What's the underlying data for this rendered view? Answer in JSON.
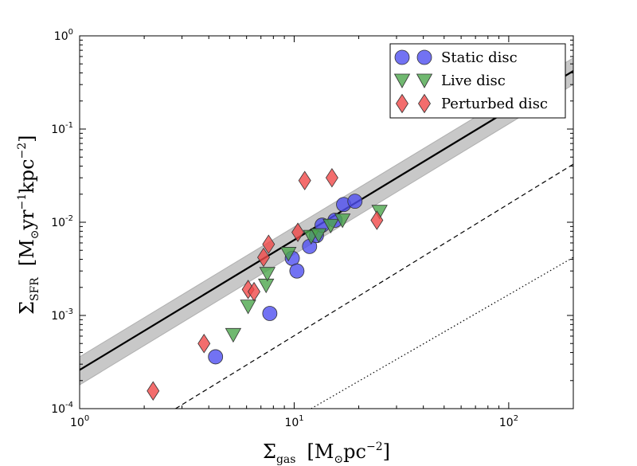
{
  "chart_data": {
    "type": "scatter",
    "scale": "log-log",
    "xlim": [
      1,
      200
    ],
    "ylim": [
      0.0001,
      1
    ],
    "xlabel": {
      "symbol": "Σ",
      "sub": "gas",
      "units_main": "M",
      "units_sun": "⊙",
      "units_unit": "pc",
      "units_exp": "−2"
    },
    "ylabel": {
      "symbol": "Σ",
      "sub": "SFR",
      "units_main": "M",
      "units_sun": "⊙",
      "units_yr": "yr",
      "units_yr_exp": "−1",
      "units_kpc": "kpc",
      "units_kpc_exp": "−2"
    },
    "x_ticks": [
      {
        "value": 1,
        "base": "10",
        "exp": "0"
      },
      {
        "value": 10,
        "base": "10",
        "exp": "1"
      },
      {
        "value": 100,
        "base": "10",
        "exp": "2"
      }
    ],
    "y_ticks": [
      {
        "value": 0.0001,
        "base": "10",
        "exp": "-4"
      },
      {
        "value": 0.001,
        "base": "10",
        "exp": "-3"
      },
      {
        "value": 0.01,
        "base": "10",
        "exp": "-2"
      },
      {
        "value": 0.1,
        "base": "10",
        "exp": "-1"
      },
      {
        "value": 1,
        "base": "10",
        "exp": "0"
      }
    ],
    "lines": [
      {
        "name": "best-fit",
        "style": "solid",
        "x": [
          1,
          200
        ],
        "y": [
          0.00026,
          0.42
        ],
        "band_low": [
          0.00018,
          0.3
        ],
        "band_high": [
          0.00036,
          0.58
        ]
      },
      {
        "name": "dashed",
        "style": "dashed",
        "x": [
          2.8,
          200
        ],
        "y": [
          0.0001,
          0.042
        ]
      },
      {
        "name": "dotted",
        "style": "dotted",
        "x": [
          12,
          200
        ],
        "y": [
          0.0001,
          0.0042
        ]
      }
    ],
    "series": [
      {
        "name": "Static disc",
        "marker": "circle",
        "color": "#4f4ff0",
        "x": [
          4.3,
          7.7,
          9.8,
          10.3,
          11.8,
          12.7,
          13.5,
          15.5,
          17.0,
          19.2
        ],
        "y": [
          0.00036,
          0.00105,
          0.0041,
          0.003,
          0.0055,
          0.0072,
          0.0093,
          0.0105,
          0.0155,
          0.0168
        ]
      },
      {
        "name": "Live disc",
        "marker": "triangle-down",
        "color": "#4ca64c",
        "x": [
          5.2,
          6.1,
          7.4,
          7.5,
          9.4,
          12.0,
          13.0,
          14.8,
          16.8,
          25.0
        ],
        "y": [
          0.00062,
          0.00125,
          0.0021,
          0.0028,
          0.0046,
          0.007,
          0.0073,
          0.0092,
          0.0105,
          0.013
        ]
      },
      {
        "name": "Perturbed disc",
        "marker": "diamond",
        "color": "#f04848",
        "x": [
          2.2,
          3.8,
          6.1,
          6.5,
          7.2,
          7.6,
          10.4,
          11.2,
          15.0,
          24.3
        ],
        "y": [
          0.000155,
          0.0005,
          0.0019,
          0.0018,
          0.0042,
          0.0058,
          0.0078,
          0.028,
          0.03,
          0.0105
        ]
      }
    ],
    "legend": {
      "position": "top-right",
      "entries": [
        "Static disc",
        "Live disc",
        "Perturbed disc"
      ]
    }
  }
}
